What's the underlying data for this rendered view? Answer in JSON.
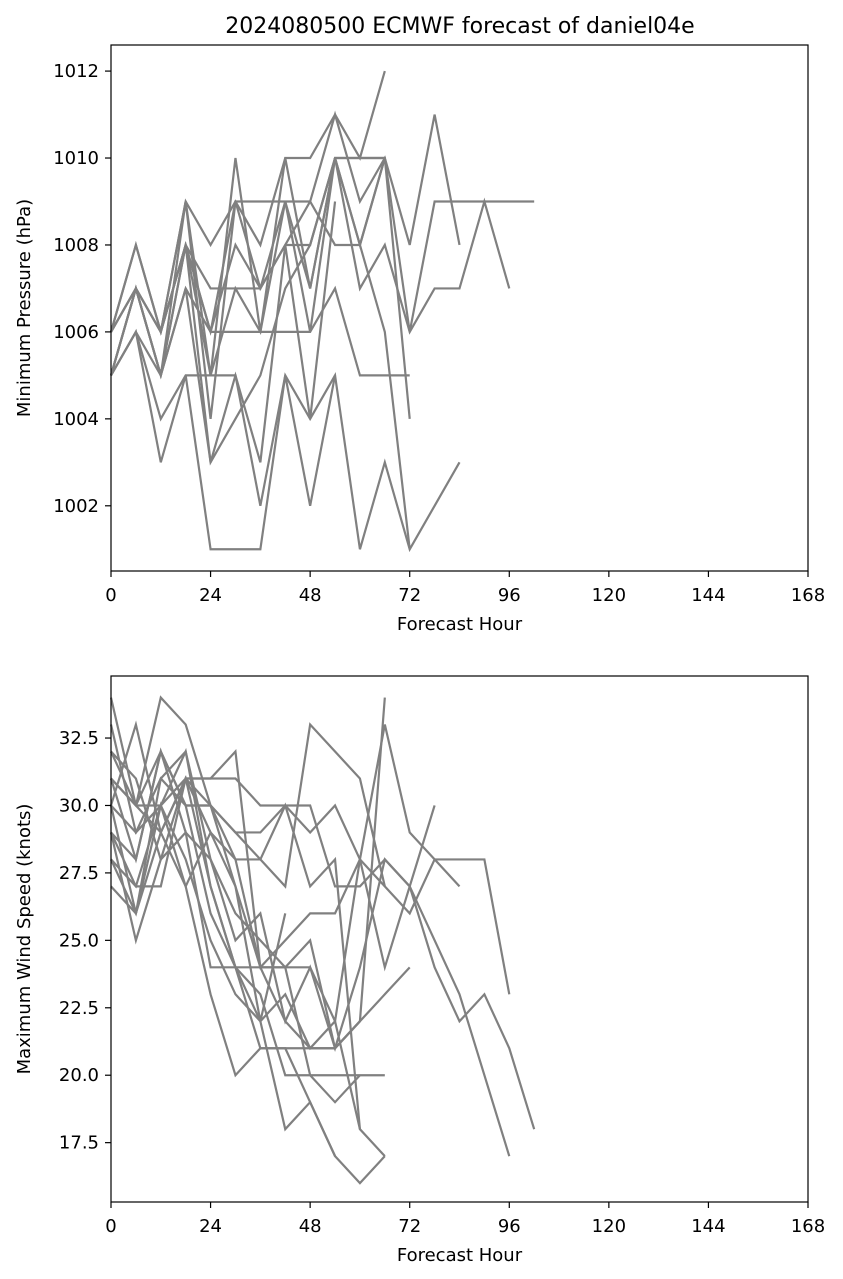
{
  "title": "2024080500 ECMWF forecast of daniel04e",
  "line_color": "#808080",
  "chart_data": [
    {
      "type": "line",
      "title": "2024080500 ECMWF forecast of daniel04e",
      "xlabel": "Forecast Hour",
      "ylabel": "Minimum Pressure (hPa)",
      "xlim": [
        0,
        168
      ],
      "ylim": [
        1000.5,
        1012.6
      ],
      "xticks": [
        0,
        24,
        48,
        72,
        96,
        120,
        144,
        168
      ],
      "yticks": [
        1002,
        1004,
        1006,
        1008,
        1010,
        1012
      ],
      "ytick_labels": [
        "1002",
        "1004",
        "1006",
        "1008",
        "1010",
        "1012"
      ],
      "grid": false,
      "series": [
        {
          "x": [
            0,
            6,
            12,
            18,
            24,
            30,
            36,
            42,
            48,
            54,
            60,
            66
          ],
          "y": [
            1005,
            1007,
            1005,
            1009,
            1005,
            1010,
            1006,
            1010,
            1010,
            1011,
            1010,
            1012
          ]
        },
        {
          "x": [
            0,
            6,
            12,
            18,
            24,
            30,
            36,
            42,
            48,
            54,
            60,
            66,
            72,
            78,
            84
          ],
          "y": [
            1006,
            1008,
            1006,
            1009,
            1004,
            1009,
            1009,
            1009,
            1009,
            1011,
            1009,
            1010,
            1008,
            1011,
            1008
          ]
        },
        {
          "x": [
            0,
            6,
            12,
            18,
            24,
            30,
            36,
            42,
            48,
            54,
            60,
            66,
            72,
            78,
            84,
            90,
            96,
            102
          ],
          "y": [
            1006,
            1007,
            1006,
            1009,
            1008,
            1009,
            1008,
            1010,
            1007,
            1010,
            1008,
            1010,
            1006,
            1009,
            1009,
            1009,
            1009,
            1009
          ]
        },
        {
          "x": [
            0,
            6,
            12,
            18,
            24,
            30,
            36,
            42,
            48,
            54,
            60,
            66,
            72,
            78,
            84,
            90,
            96
          ],
          "y": [
            1005,
            1007,
            1006,
            1008,
            1006,
            1008,
            1007,
            1008,
            1008,
            1010,
            1007,
            1008,
            1006,
            1007,
            1007,
            1009,
            1007
          ]
        },
        {
          "x": [
            0,
            6,
            12,
            18,
            24,
            30,
            36,
            42,
            48,
            54,
            60,
            66,
            72
          ],
          "y": [
            1005,
            1006,
            1005,
            1008,
            1007,
            1007,
            1007,
            1009,
            1006,
            1010,
            1008,
            1006,
            1001
          ]
        },
        {
          "x": [
            0,
            6,
            12,
            18,
            24,
            30,
            36,
            42,
            48,
            54,
            60,
            66,
            72
          ],
          "y": [
            1006,
            1007,
            1005,
            1007,
            1006,
            1006,
            1006,
            1006,
            1006,
            1007,
            1005,
            1005,
            1005
          ]
        },
        {
          "x": [
            0,
            6,
            12,
            18,
            24,
            30,
            36,
            42,
            48,
            54,
            60,
            66,
            72,
            78,
            84
          ],
          "y": [
            1005,
            1006,
            1004,
            1005,
            1005,
            1005,
            1002,
            1005,
            1004,
            1005,
            1001,
            1003,
            1001,
            1002,
            1003
          ]
        },
        {
          "x": [
            0,
            6,
            12,
            18,
            24,
            30,
            36,
            42,
            48,
            54
          ],
          "y": [
            1005,
            1006,
            1003,
            1005,
            1001,
            1001,
            1001,
            1005,
            1002,
            1005
          ]
        },
        {
          "x": [
            0,
            6,
            12,
            18,
            24,
            30,
            36,
            42,
            48,
            54,
            60,
            66,
            72
          ],
          "y": [
            1006,
            1007,
            1006,
            1008,
            1005,
            1007,
            1006,
            1009,
            1007,
            1010,
            1010,
            1010,
            1004
          ]
        },
        {
          "x": [
            0,
            6,
            12,
            18,
            24,
            30,
            36,
            42,
            48,
            54
          ],
          "y": [
            1005,
            1007,
            1005,
            1008,
            1003,
            1005,
            1003,
            1008,
            1004,
            1009
          ]
        },
        {
          "x": [
            0,
            6,
            12,
            18,
            24,
            30,
            36,
            42,
            48,
            54,
            60,
            66
          ],
          "y": [
            1006,
            1008,
            1006,
            1008,
            1006,
            1009,
            1007,
            1008,
            1009,
            1008,
            1008,
            1010
          ]
        },
        {
          "x": [
            0,
            6,
            12,
            18,
            24,
            30,
            36,
            42,
            48,
            54,
            60,
            66
          ],
          "y": [
            1005,
            1007,
            1005,
            1007,
            1003,
            1004,
            1005,
            1007,
            1008,
            1010,
            1010,
            1010
          ]
        }
      ]
    },
    {
      "type": "line",
      "title": "",
      "xlabel": "Forecast Hour",
      "ylabel": "Maximum Wind Speed (knots)",
      "xlim": [
        0,
        168
      ],
      "ylim": [
        15.3,
        34.8
      ],
      "xticks": [
        0,
        24,
        48,
        72,
        96,
        120,
        144,
        168
      ],
      "yticks": [
        17.5,
        20.0,
        22.5,
        25.0,
        27.5,
        30.0,
        32.5
      ],
      "ytick_labels": [
        "17.5",
        "20.0",
        "22.5",
        "25.0",
        "27.5",
        "30.0",
        "32.5"
      ],
      "grid": false,
      "series": [
        {
          "x": [
            0,
            6,
            12,
            18,
            24,
            30,
            36,
            42,
            48,
            54,
            60,
            66
          ],
          "y": [
            34,
            30,
            34,
            33,
            30,
            27,
            24,
            22,
            21,
            21,
            22,
            34
          ]
        },
        {
          "x": [
            0,
            6,
            12,
            18,
            24,
            30,
            36,
            42,
            48,
            54,
            60,
            66,
            72,
            78,
            84
          ],
          "y": [
            33,
            29,
            30,
            32,
            27,
            24,
            22,
            23,
            21,
            22,
            28,
            33,
            29,
            28,
            27
          ]
        },
        {
          "x": [
            0,
            6,
            12,
            18,
            24,
            30,
            36,
            42,
            48,
            54,
            60,
            66,
            72,
            78,
            84,
            90,
            96
          ],
          "y": [
            32,
            30,
            29,
            31,
            31,
            31,
            30,
            30,
            29,
            30,
            28,
            27,
            26,
            28,
            28,
            28,
            23
          ]
        },
        {
          "x": [
            0,
            6,
            12,
            18,
            24,
            30,
            36,
            42,
            48,
            54,
            60,
            66,
            72,
            78,
            84,
            90,
            96,
            102
          ],
          "y": [
            31,
            28,
            32,
            30,
            30,
            29,
            29,
            30,
            30,
            27,
            27,
            28,
            27,
            24,
            22,
            23,
            21,
            18
          ]
        },
        {
          "x": [
            0,
            6,
            12,
            18,
            24,
            30,
            36,
            42,
            48,
            54,
            60,
            66,
            72,
            78,
            84,
            90,
            96
          ],
          "y": [
            30,
            26,
            31,
            32,
            28,
            25,
            26,
            22,
            24,
            21,
            24,
            28,
            27,
            25,
            23,
            20,
            17
          ]
        },
        {
          "x": [
            0,
            6,
            12,
            18,
            24,
            30,
            36,
            42,
            48,
            54,
            60,
            66
          ],
          "y": [
            29,
            27,
            27,
            31,
            30,
            29,
            28,
            27,
            33,
            32,
            31,
            27
          ]
        },
        {
          "x": [
            0,
            6,
            12,
            18,
            24,
            30,
            36,
            42,
            48,
            54,
            60,
            66,
            72,
            78
          ],
          "y": [
            29,
            25,
            28,
            31,
            29,
            28,
            24,
            25,
            26,
            26,
            28,
            24,
            27,
            30
          ]
        },
        {
          "x": [
            0,
            6,
            12,
            18,
            24,
            30,
            36,
            42,
            48,
            54,
            60,
            66,
            72
          ],
          "y": [
            28,
            26,
            30,
            27,
            23,
            20,
            21,
            21,
            21,
            21,
            22,
            23,
            24
          ]
        },
        {
          "x": [
            0,
            6,
            12,
            18,
            24,
            30,
            36,
            42,
            48,
            54,
            60,
            66
          ],
          "y": [
            30,
            29,
            31,
            30,
            26,
            24,
            23,
            20,
            20,
            20,
            20,
            20
          ]
        },
        {
          "x": [
            0,
            6,
            12,
            18,
            24,
            30,
            36,
            42,
            48,
            54,
            60
          ],
          "y": [
            31,
            30,
            30,
            31,
            31,
            32,
            24,
            24,
            20,
            19,
            20
          ]
        },
        {
          "x": [
            0,
            6,
            12,
            18,
            24,
            30,
            36,
            42,
            48,
            54,
            60,
            66
          ],
          "y": [
            32,
            31,
            28,
            29,
            24,
            24,
            24,
            24,
            24,
            22,
            18,
            17
          ]
        },
        {
          "x": [
            0,
            6,
            12,
            18,
            24,
            30,
            36,
            42,
            48,
            54,
            60,
            66
          ],
          "y": [
            28,
            27,
            30,
            28,
            25,
            23,
            22,
            18,
            19,
            17,
            16,
            17
          ]
        },
        {
          "x": [
            0,
            6,
            12,
            18,
            24,
            30,
            36,
            42,
            48,
            54
          ],
          "y": [
            30,
            33,
            29,
            31,
            27,
            24,
            21,
            21,
            19,
            17
          ]
        },
        {
          "x": [
            0,
            6,
            12,
            18,
            24,
            30,
            36,
            42,
            48,
            54,
            60
          ],
          "y": [
            29,
            28,
            32,
            29,
            28,
            26,
            25,
            24,
            25,
            21,
            22
          ]
        },
        {
          "x": [
            0,
            6,
            12,
            18,
            24,
            30,
            36,
            42,
            48,
            54,
            60
          ],
          "y": [
            31,
            30,
            32,
            30,
            30,
            28,
            28,
            30,
            27,
            28,
            18
          ]
        },
        {
          "x": [
            0,
            6,
            12,
            18,
            24,
            30,
            36,
            42
          ],
          "y": [
            27,
            26,
            29,
            27,
            29,
            27,
            22,
            26
          ]
        }
      ]
    }
  ]
}
